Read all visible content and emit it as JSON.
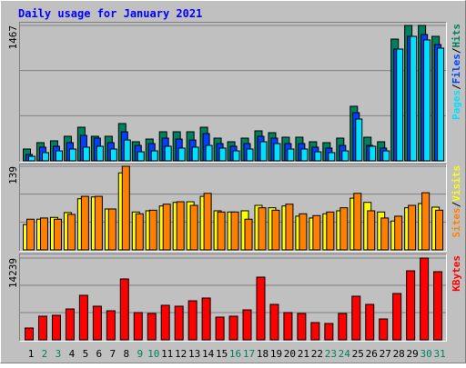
{
  "chart_data": [
    {
      "type": "bar",
      "title": "Daily usage for January 2021",
      "ylim": [
        0,
        1467
      ],
      "yticks": [
        1467
      ],
      "series": [
        {
          "name": "Hits",
          "color": "#00805c",
          "values": [
            128,
            197,
            217,
            266,
            364,
            266,
            266,
            404,
            207,
            236,
            315,
            315,
            315,
            364,
            246,
            207,
            246,
            325,
            305,
            256,
            256,
            207,
            197,
            246,
            591,
            256,
            207,
            1319,
            1467,
            1467,
            1349
          ]
        },
        {
          "name": "Files",
          "color": "#0040ff",
          "values": [
            69,
            148,
            158,
            197,
            276,
            246,
            197,
            315,
            167,
            187,
            246,
            236,
            226,
            295,
            187,
            158,
            187,
            266,
            246,
            187,
            187,
            148,
            138,
            167,
            522,
            167,
            138,
            1211,
            1349,
            1369,
            1260
          ]
        },
        {
          "name": "Pages",
          "color": "#00e0ff",
          "values": [
            49,
            89,
            108,
            128,
            148,
            158,
            128,
            226,
            98,
            108,
            158,
            138,
            148,
            167,
            138,
            108,
            128,
            207,
            187,
            128,
            128,
            98,
            89,
            108,
            453,
            158,
            108,
            1211,
            1349,
            1310,
            1221
          ]
        }
      ],
      "legend_separator": "/"
    },
    {
      "type": "bar",
      "ylim": [
        0,
        139
      ],
      "yticks": [
        139
      ],
      "series": [
        {
          "name": "Visits",
          "color": "#ffff00",
          "values": [
            42,
            51,
            54,
            62,
            85,
            88,
            68,
            128,
            63,
            65,
            73,
            79,
            80,
            89,
            65,
            63,
            65,
            74,
            70,
            73,
            56,
            53,
            60,
            65,
            86,
            79,
            63,
            48,
            70,
            77,
            71
          ]
        },
        {
          "name": "Sites",
          "color": "#ff8000",
          "values": [
            51,
            53,
            51,
            59,
            89,
            89,
            68,
            139,
            60,
            66,
            76,
            80,
            74,
            94,
            63,
            63,
            51,
            70,
            66,
            76,
            60,
            57,
            63,
            70,
            94,
            65,
            53,
            56,
            74,
            95,
            66
          ]
        }
      ],
      "legend_separator": "/"
    },
    {
      "type": "bar",
      "ylim": [
        0,
        14239
      ],
      "yticks": [
        14239
      ],
      "categories": [
        "1",
        "2",
        "3",
        "4",
        "5",
        "6",
        "7",
        "8",
        "9",
        "10",
        "11",
        "12",
        "13",
        "14",
        "15",
        "16",
        "17",
        "18",
        "19",
        "20",
        "21",
        "22",
        "23",
        "24",
        "25",
        "26",
        "27",
        "28",
        "29",
        "30",
        "31"
      ],
      "category_colors": [
        "#000000",
        "#00805c",
        "#00805c",
        "#000000",
        "#000000",
        "#000000",
        "#000000",
        "#000000",
        "#00805c",
        "#00805c",
        "#000000",
        "#000000",
        "#000000",
        "#000000",
        "#000000",
        "#00805c",
        "#00805c",
        "#000000",
        "#000000",
        "#000000",
        "#000000",
        "#000000",
        "#00805c",
        "#00805c",
        "#000000",
        "#000000",
        "#000000",
        "#000000",
        "#000000",
        "#00805c",
        "#00805c"
      ],
      "series": [
        {
          "name": "KBytes",
          "color": "#ff0000",
          "values": [
            2057,
            4113,
            4271,
            5379,
            7752,
            5854,
            5063,
            10600,
            4746,
            4588,
            6012,
            5854,
            6803,
            7278,
            3955,
            4113,
            5221,
            10916,
            6170,
            4746,
            4588,
            3006,
            2848,
            4588,
            7594,
            6170,
            3639,
            8069,
            12024,
            14239,
            11866
          ]
        }
      ]
    }
  ]
}
